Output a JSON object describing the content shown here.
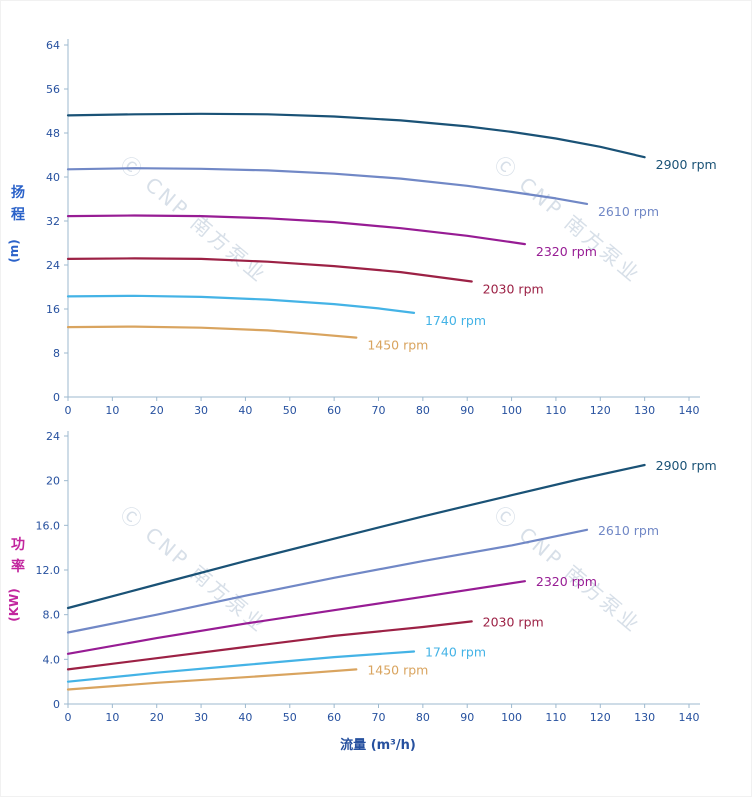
{
  "watermark": "Ⓒ CNP 南方泵业",
  "xlabel": "流量 (m³/h)",
  "colors": {
    "axis_line": "#9db9cf",
    "tick_text": "#27519f",
    "xlabel_text": "#27519f",
    "watermark": "#b7c6d6"
  },
  "chart_data": [
    {
      "type": "line",
      "title": "",
      "ylabel": "扬程",
      "ylabel_unit": "(m)",
      "ylabel_color": "#2b62c9",
      "xlabel": "",
      "xlim": [
        0,
        140
      ],
      "ylim": [
        0,
        64
      ],
      "xticks": [
        0,
        10,
        20,
        30,
        40,
        50,
        60,
        70,
        80,
        90,
        100,
        110,
        120,
        130,
        140
      ],
      "yticks": [
        {
          "v": 0,
          "label": "0"
        },
        {
          "v": 8,
          "label": "8"
        },
        {
          "v": 16,
          "label": "16"
        },
        {
          "v": 24,
          "label": "24"
        },
        {
          "v": 32,
          "label": "32"
        },
        {
          "v": 40,
          "label": "40"
        },
        {
          "v": 48,
          "label": "48"
        },
        {
          "v": 56,
          "label": "56"
        },
        {
          "v": 64,
          "label": "64"
        }
      ],
      "grid": false,
      "legend_position": "end-of-line",
      "series": [
        {
          "name": "2900 rpm",
          "color": "#1a5276",
          "points": [
            [
              0,
              51.2
            ],
            [
              15,
              51.4
            ],
            [
              30,
              51.5
            ],
            [
              45,
              51.4
            ],
            [
              60,
              51.0
            ],
            [
              75,
              50.3
            ],
            [
              90,
              49.2
            ],
            [
              100,
              48.2
            ],
            [
              110,
              47.0
            ],
            [
              120,
              45.5
            ],
            [
              130,
              43.6
            ]
          ]
        },
        {
          "name": "2610 rpm",
          "color": "#7188c6",
          "points": [
            [
              0,
              41.4
            ],
            [
              15,
              41.6
            ],
            [
              30,
              41.5
            ],
            [
              45,
              41.2
            ],
            [
              60,
              40.6
            ],
            [
              75,
              39.7
            ],
            [
              90,
              38.4
            ],
            [
              100,
              37.3
            ],
            [
              110,
              36.1
            ],
            [
              117,
              35.1
            ]
          ]
        },
        {
          "name": "2320 rpm",
          "color": "#971c94",
          "points": [
            [
              0,
              32.9
            ],
            [
              15,
              33.0
            ],
            [
              30,
              32.9
            ],
            [
              45,
              32.5
            ],
            [
              60,
              31.8
            ],
            [
              75,
              30.7
            ],
            [
              90,
              29.3
            ],
            [
              103,
              27.8
            ]
          ]
        },
        {
          "name": "2030 rpm",
          "color": "#9c2145",
          "points": [
            [
              0,
              25.1
            ],
            [
              15,
              25.2
            ],
            [
              30,
              25.1
            ],
            [
              45,
              24.6
            ],
            [
              60,
              23.8
            ],
            [
              75,
              22.7
            ],
            [
              91,
              21.0
            ]
          ]
        },
        {
          "name": "1740 rpm",
          "color": "#44b3e6",
          "points": [
            [
              0,
              18.3
            ],
            [
              15,
              18.4
            ],
            [
              30,
              18.2
            ],
            [
              45,
              17.7
            ],
            [
              60,
              16.9
            ],
            [
              70,
              16.1
            ],
            [
              78,
              15.3
            ]
          ]
        },
        {
          "name": "1450 rpm",
          "color": "#d9a45f",
          "points": [
            [
              0,
              12.7
            ],
            [
              15,
              12.8
            ],
            [
              30,
              12.6
            ],
            [
              45,
              12.1
            ],
            [
              55,
              11.5
            ],
            [
              65,
              10.8
            ]
          ]
        }
      ]
    },
    {
      "type": "line",
      "title": "",
      "ylabel": "功率",
      "ylabel_unit": "(KW)",
      "ylabel_color": "#c2269e",
      "xlabel": "流量 (m³/h)",
      "xlim": [
        0,
        140
      ],
      "ylim": [
        0,
        24
      ],
      "xticks": [
        0,
        10,
        20,
        30,
        40,
        50,
        60,
        70,
        80,
        90,
        100,
        110,
        120,
        130,
        140
      ],
      "yticks": [
        {
          "v": 0,
          "label": "0"
        },
        {
          "v": 4,
          "label": "4.0"
        },
        {
          "v": 8,
          "label": "8.0"
        },
        {
          "v": 12,
          "label": "12.0"
        },
        {
          "v": 16,
          "label": "16.0"
        },
        {
          "v": 20,
          "label": "20"
        },
        {
          "v": 24,
          "label": "24"
        }
      ],
      "grid": false,
      "legend_position": "end-of-line",
      "series": [
        {
          "name": "2900 rpm",
          "color": "#1a5276",
          "points": [
            [
              0,
              8.6
            ],
            [
              20,
              10.7
            ],
            [
              40,
              12.8
            ],
            [
              60,
              14.8
            ],
            [
              80,
              16.8
            ],
            [
              100,
              18.7
            ],
            [
              115,
              20.1
            ],
            [
              130,
              21.4
            ]
          ]
        },
        {
          "name": "2610 rpm",
          "color": "#7188c6",
          "points": [
            [
              0,
              6.4
            ],
            [
              20,
              8.0
            ],
            [
              40,
              9.7
            ],
            [
              60,
              11.3
            ],
            [
              80,
              12.8
            ],
            [
              100,
              14.2
            ],
            [
              117,
              15.6
            ]
          ]
        },
        {
          "name": "2320 rpm",
          "color": "#971c94",
          "points": [
            [
              0,
              4.5
            ],
            [
              20,
              5.9
            ],
            [
              40,
              7.2
            ],
            [
              60,
              8.4
            ],
            [
              80,
              9.6
            ],
            [
              103,
              11.0
            ]
          ]
        },
        {
          "name": "2030 rpm",
          "color": "#9c2145",
          "points": [
            [
              0,
              3.1
            ],
            [
              20,
              4.1
            ],
            [
              40,
              5.1
            ],
            [
              60,
              6.1
            ],
            [
              80,
              6.9
            ],
            [
              91,
              7.4
            ]
          ]
        },
        {
          "name": "1740 rpm",
          "color": "#44b3e6",
          "points": [
            [
              0,
              2.0
            ],
            [
              20,
              2.8
            ],
            [
              40,
              3.5
            ],
            [
              60,
              4.2
            ],
            [
              78,
              4.7
            ]
          ]
        },
        {
          "name": "1450 rpm",
          "color": "#d9a45f",
          "points": [
            [
              0,
              1.3
            ],
            [
              20,
              1.9
            ],
            [
              40,
              2.4
            ],
            [
              55,
              2.8
            ],
            [
              65,
              3.1
            ]
          ]
        }
      ]
    }
  ]
}
